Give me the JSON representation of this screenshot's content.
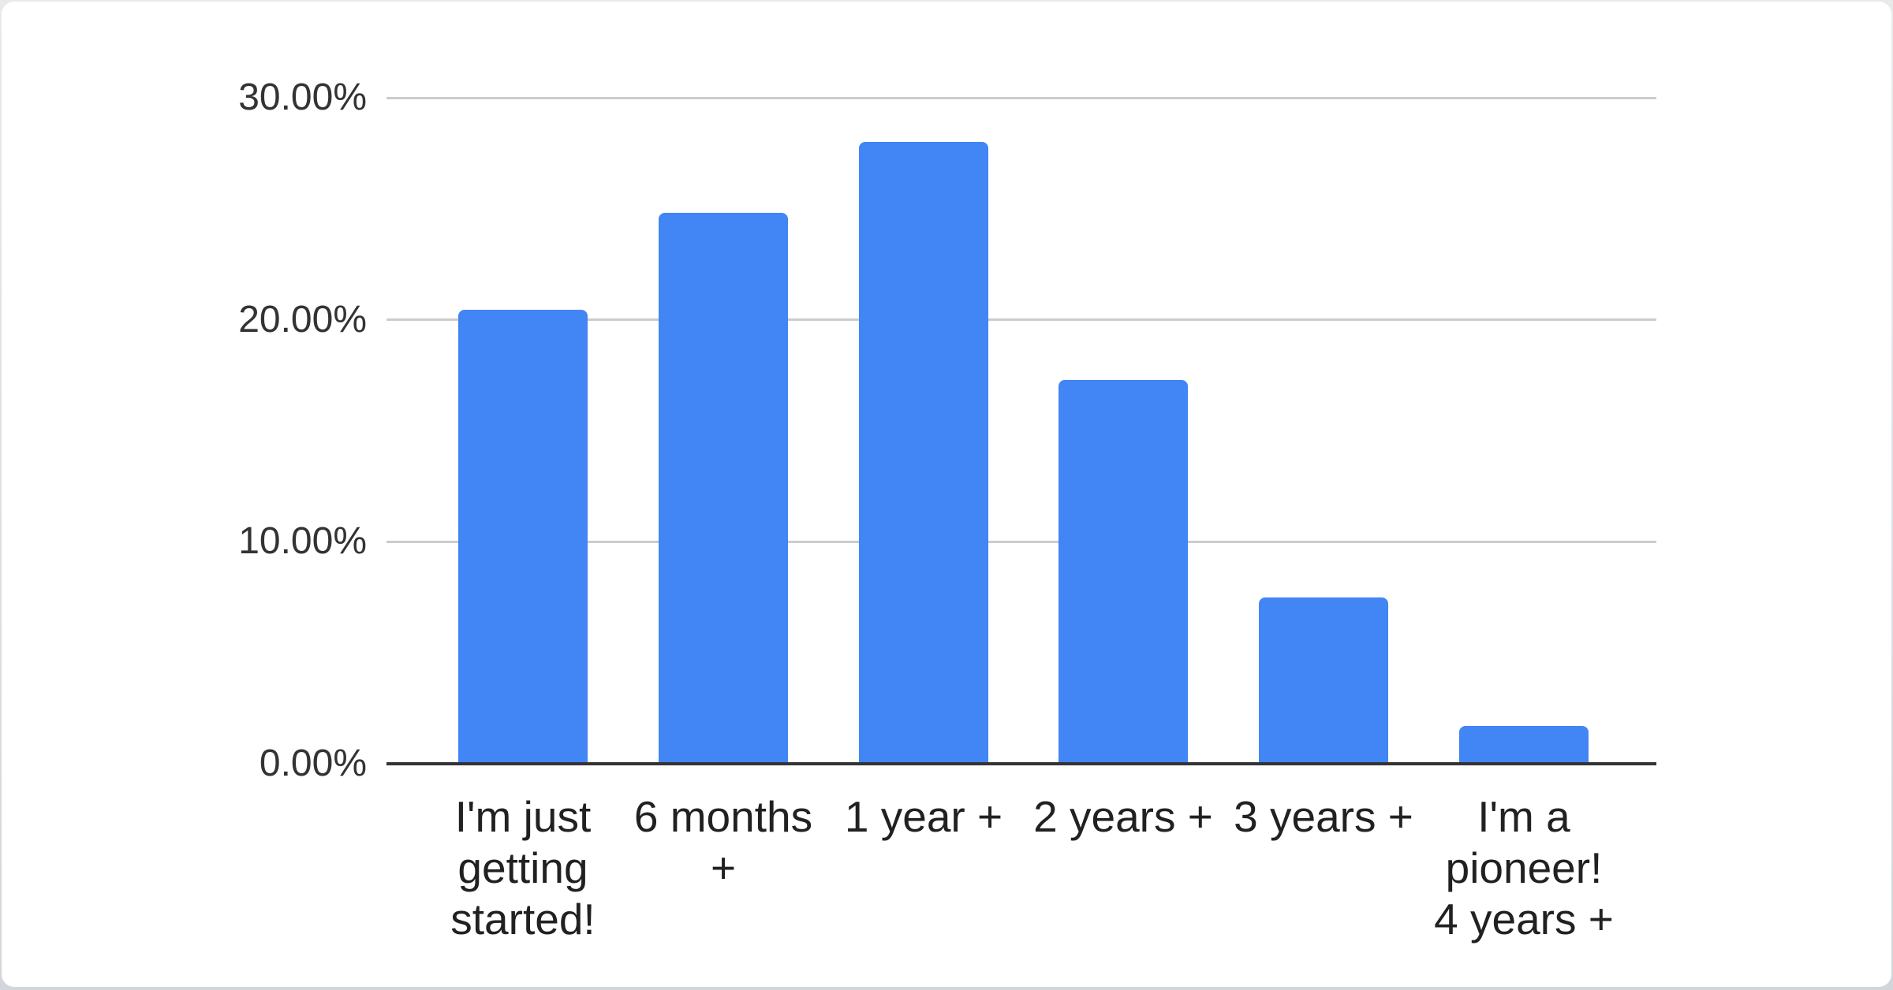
{
  "chart_data": {
    "type": "bar",
    "title": "",
    "categories": [
      "I'm just getting started!",
      "6 months +",
      "1 year +",
      "2 years +",
      "3 years +",
      "I'm a pioneer! 4 years +"
    ],
    "category_lines": [
      [
        "I'm just",
        "getting",
        "started!"
      ],
      [
        "6 months",
        "+"
      ],
      [
        "1 year +"
      ],
      [
        "2 years +"
      ],
      [
        "3 years +"
      ],
      [
        "I'm a",
        "pioneer!",
        "4 years +"
      ]
    ],
    "values": [
      20.45,
      24.8,
      28.0,
      17.3,
      7.5,
      1.7
    ],
    "unit": "%",
    "xlabel": "",
    "ylabel": "",
    "ylim": [
      0,
      30
    ],
    "y_ticks": [
      {
        "value": 0,
        "label": "0.00%"
      },
      {
        "value": 10,
        "label": "10.00%"
      },
      {
        "value": 20,
        "label": "20.00%"
      },
      {
        "value": 30,
        "label": "30.00%"
      }
    ],
    "grid": true,
    "legend_position": "none",
    "colors": {
      "bar": "#4285F4",
      "axis_line": "#333333",
      "gridline": "#cccccc",
      "y_tick_text": "#333333",
      "x_label_text": "#212121",
      "card_background": "#ffffff"
    }
  }
}
